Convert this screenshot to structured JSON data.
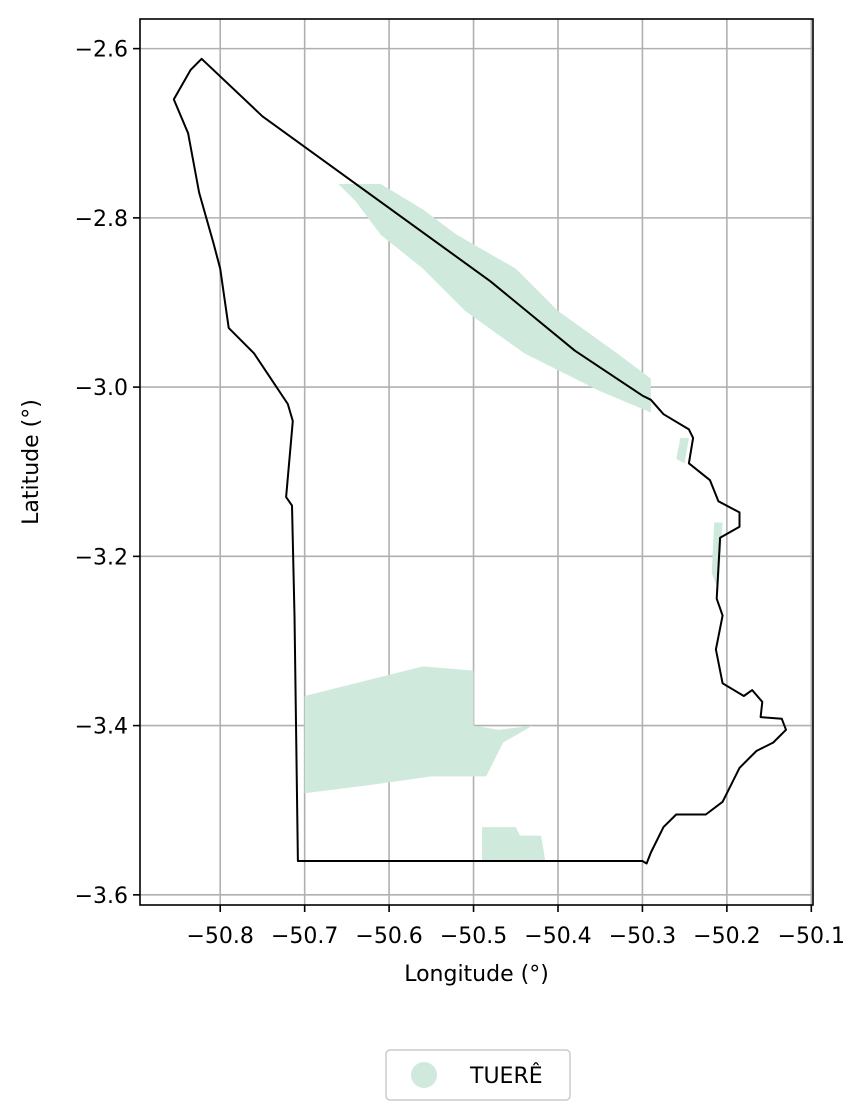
{
  "chart_data": {
    "type": "map",
    "xlabel": "Longitude (°)",
    "ylabel": "Latitude (°)",
    "x_ticks": [
      -50.8,
      -50.7,
      -50.6,
      -50.5,
      -50.4,
      -50.3,
      -50.2,
      -50.1
    ],
    "x_tick_labels": [
      "−50.8",
      "−50.7",
      "−50.6",
      "−50.5",
      "−50.4",
      "−50.3",
      "−50.2",
      "−50.1"
    ],
    "y_ticks": [
      -2.6,
      -2.8,
      -3.0,
      -3.2,
      -3.4,
      -3.6
    ],
    "y_tick_labels": [
      "−2.6",
      "−2.8",
      "−3.0",
      "−3.2",
      "−3.4",
      "−3.6"
    ],
    "xlim": [
      -50.895,
      -50.098
    ],
    "ylim": [
      -3.612,
      -2.565
    ],
    "grid": true,
    "legend": {
      "placement": "bottom-center",
      "entries": [
        {
          "label": "TUERÊ",
          "color": "#cfeadd"
        }
      ]
    },
    "layers": [
      {
        "name": "TUERÊ",
        "kind": "filled-region",
        "color": "#cfeadd",
        "polygons": [
          [
            [
              -50.66,
              -2.76
            ],
            [
              -50.61,
              -2.76
            ],
            [
              -50.56,
              -2.79
            ],
            [
              -50.52,
              -2.82
            ],
            [
              -50.45,
              -2.86
            ],
            [
              -50.4,
              -2.91
            ],
            [
              -50.33,
              -2.96
            ],
            [
              -50.29,
              -2.99
            ],
            [
              -50.29,
              -3.03
            ],
            [
              -50.35,
              -3.005
            ],
            [
              -50.44,
              -2.96
            ],
            [
              -50.51,
              -2.91
            ],
            [
              -50.56,
              -2.86
            ],
            [
              -50.61,
              -2.82
            ],
            [
              -50.64,
              -2.78
            ]
          ],
          [
            [
              -50.7,
              -3.365
            ],
            [
              -50.56,
              -3.33
            ],
            [
              -50.5,
              -3.335
            ],
            [
              -50.5,
              -3.4
            ],
            [
              -50.47,
              -3.405
            ],
            [
              -50.43,
              -3.4
            ],
            [
              -50.465,
              -3.42
            ],
            [
              -50.485,
              -3.46
            ],
            [
              -50.55,
              -3.46
            ],
            [
              -50.62,
              -3.47
            ],
            [
              -50.7,
              -3.48
            ]
          ],
          [
            [
              -50.49,
              -3.52
            ],
            [
              -50.45,
              -3.52
            ],
            [
              -50.445,
              -3.53
            ],
            [
              -50.42,
              -3.53
            ],
            [
              -50.415,
              -3.56
            ],
            [
              -50.49,
              -3.56
            ]
          ],
          [
            [
              -50.255,
              -3.06
            ],
            [
              -50.245,
              -3.06
            ],
            [
              -50.25,
              -3.09
            ],
            [
              -50.26,
              -3.085
            ]
          ],
          [
            [
              -50.215,
              -3.16
            ],
            [
              -50.205,
              -3.16
            ],
            [
              -50.21,
              -3.24
            ],
            [
              -50.218,
              -3.22
            ]
          ]
        ]
      },
      {
        "name": "boundary",
        "kind": "outline",
        "color": "#000000",
        "ring": [
          [
            -50.822,
            -2.612
          ],
          [
            -50.75,
            -2.68
          ],
          [
            -50.66,
            -2.745
          ],
          [
            -50.57,
            -2.81
          ],
          [
            -50.48,
            -2.875
          ],
          [
            -50.38,
            -2.957
          ],
          [
            -50.3,
            -3.01
          ],
          [
            -50.29,
            -3.015
          ],
          [
            -50.275,
            -3.032
          ],
          [
            -50.245,
            -3.05
          ],
          [
            -50.24,
            -3.06
          ],
          [
            -50.245,
            -3.09
          ],
          [
            -50.22,
            -3.11
          ],
          [
            -50.21,
            -3.135
          ],
          [
            -50.185,
            -3.148
          ],
          [
            -50.185,
            -3.165
          ],
          [
            -50.208,
            -3.178
          ],
          [
            -50.212,
            -3.25
          ],
          [
            -50.205,
            -3.27
          ],
          [
            -50.213,
            -3.31
          ],
          [
            -50.205,
            -3.35
          ],
          [
            -50.18,
            -3.365
          ],
          [
            -50.17,
            -3.358
          ],
          [
            -50.158,
            -3.372
          ],
          [
            -50.16,
            -3.39
          ],
          [
            -50.135,
            -3.392
          ],
          [
            -50.13,
            -3.405
          ],
          [
            -50.145,
            -3.42
          ],
          [
            -50.165,
            -3.43
          ],
          [
            -50.185,
            -3.45
          ],
          [
            -50.205,
            -3.49
          ],
          [
            -50.225,
            -3.505
          ],
          [
            -50.26,
            -3.505
          ],
          [
            -50.275,
            -3.52
          ],
          [
            -50.29,
            -3.55
          ],
          [
            -50.295,
            -3.563
          ],
          [
            -50.3,
            -3.56
          ],
          [
            -50.708,
            -3.56
          ],
          [
            -50.712,
            -3.27
          ],
          [
            -50.715,
            -3.14
          ],
          [
            -50.722,
            -3.13
          ],
          [
            -50.714,
            -3.04
          ],
          [
            -50.72,
            -3.02
          ],
          [
            -50.76,
            -2.96
          ],
          [
            -50.79,
            -2.93
          ],
          [
            -50.8,
            -2.86
          ],
          [
            -50.808,
            -2.83
          ],
          [
            -50.825,
            -2.77
          ],
          [
            -50.838,
            -2.7
          ],
          [
            -50.855,
            -2.66
          ],
          [
            -50.835,
            -2.625
          ]
        ]
      }
    ]
  }
}
